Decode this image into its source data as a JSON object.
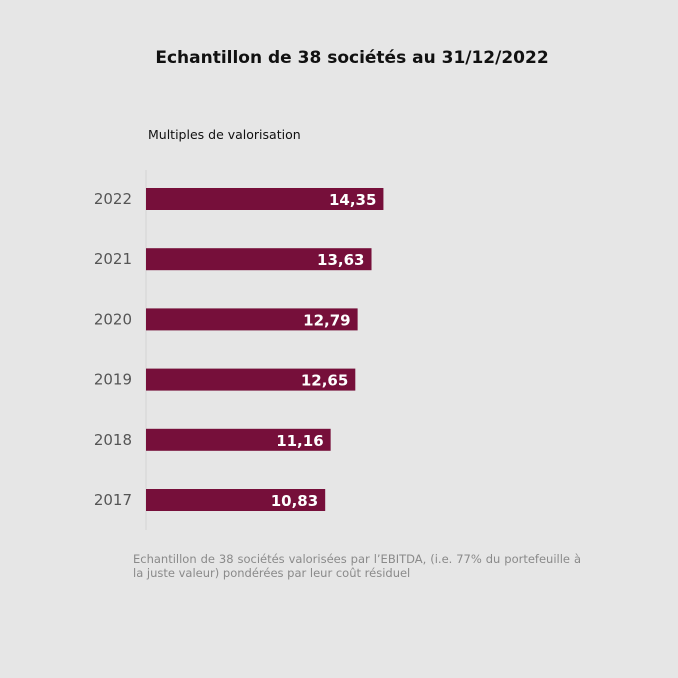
{
  "title": "Echantillon de 38 sociétés au 31/12/2022",
  "subtitle": "Multiples de valorisation",
  "footnote": "Echantillon de 38 sociétés valorisées par l’EBITDA, (i.e. 77% du portefeuille à la juste valeur) pondérées par leur coût résiduel",
  "colors": {
    "background": "#e6e6e6",
    "bar": "#760f3a",
    "bar_label": "#ffffff",
    "category_label": "#555555",
    "axis": "#d4d4d4"
  },
  "chart_data": {
    "type": "bar",
    "orientation": "horizontal",
    "title": "Echantillon de 38 sociétés au 31/12/2022",
    "subtitle": "Multiples de valorisation",
    "categories": [
      "2022",
      "2021",
      "2020",
      "2019",
      "2018",
      "2017"
    ],
    "values": [
      14.35,
      13.63,
      12.79,
      12.65,
      11.16,
      10.83
    ],
    "value_labels": [
      "14,35",
      "13,63",
      "12,79",
      "12,65",
      "11,16",
      "10,83"
    ],
    "xlim": [
      0,
      22
    ],
    "grid": false,
    "legend": "none"
  }
}
